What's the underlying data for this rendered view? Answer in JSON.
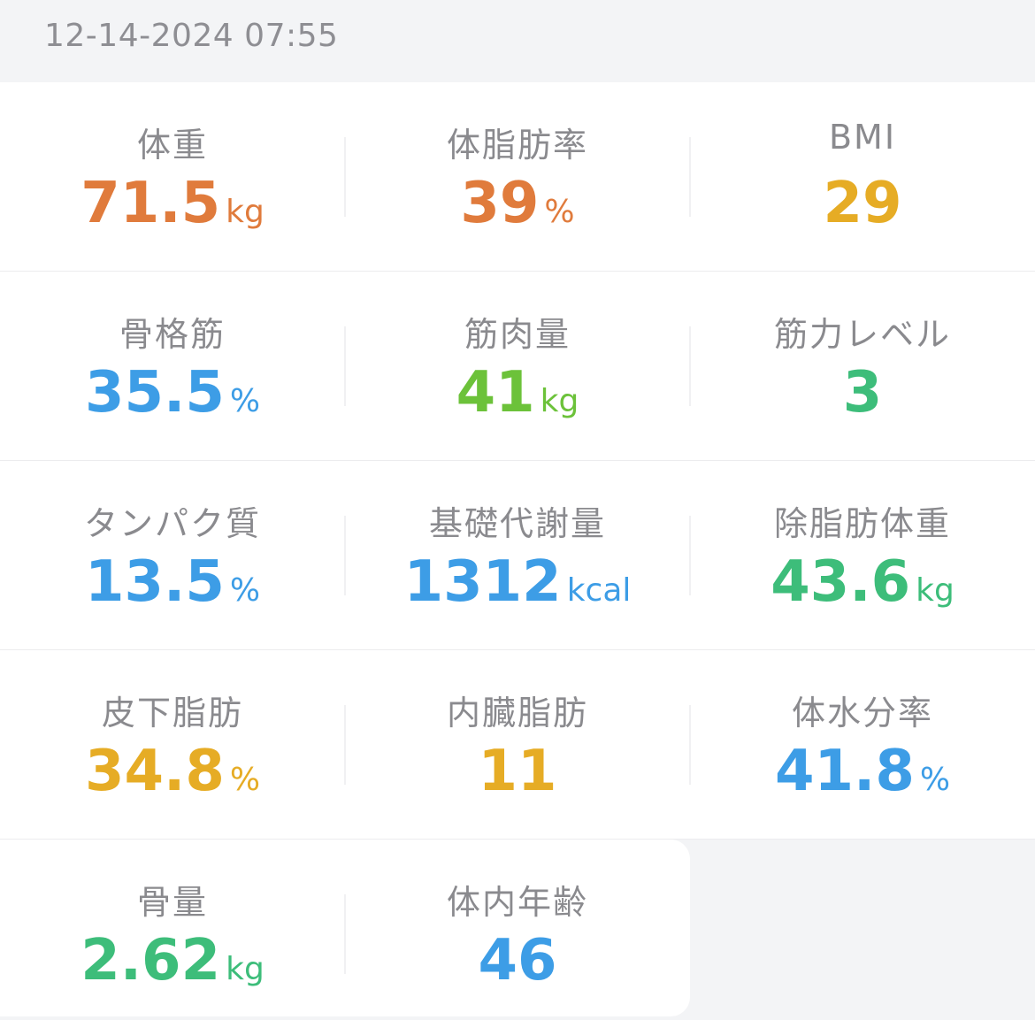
{
  "timestamp": "12-14-2024 07:55",
  "metrics": [
    [
      {
        "label": "体重",
        "value": "71.5",
        "unit": "kg",
        "color": "#e07b3c"
      },
      {
        "label": "体脂肪率",
        "value": "39",
        "unit": "%",
        "color": "#e07b3c"
      },
      {
        "label": "BMI",
        "value": "29",
        "unit": "",
        "color": "#e6ac25"
      }
    ],
    [
      {
        "label": "骨格筋",
        "value": "35.5",
        "unit": "%",
        "color": "#3d9de6"
      },
      {
        "label": "筋肉量",
        "value": "41",
        "unit": "kg",
        "color": "#6cc23a"
      },
      {
        "label": "筋力レベル",
        "value": "3",
        "unit": "",
        "color": "#3dbd7a"
      }
    ],
    [
      {
        "label": "タンパク質",
        "value": "13.5",
        "unit": "%",
        "color": "#3d9de6"
      },
      {
        "label": "基礎代謝量",
        "value": "1312",
        "unit": "kcal",
        "color": "#3d9de6"
      },
      {
        "label": "除脂肪体重",
        "value": "43.6",
        "unit": "kg",
        "color": "#3dbd7a"
      }
    ],
    [
      {
        "label": "皮下脂肪",
        "value": "34.8",
        "unit": "%",
        "color": "#e6ac25"
      },
      {
        "label": "内臓脂肪",
        "value": "11",
        "unit": "",
        "color": "#e6ac25"
      },
      {
        "label": "体水分率",
        "value": "41.8",
        "unit": "%",
        "color": "#3d9de6"
      }
    ],
    [
      {
        "label": "骨量",
        "value": "2.62",
        "unit": "kg",
        "color": "#3dbd7a"
      },
      {
        "label": "体内年齢",
        "value": "46",
        "unit": "",
        "color": "#3d9de6"
      }
    ]
  ]
}
